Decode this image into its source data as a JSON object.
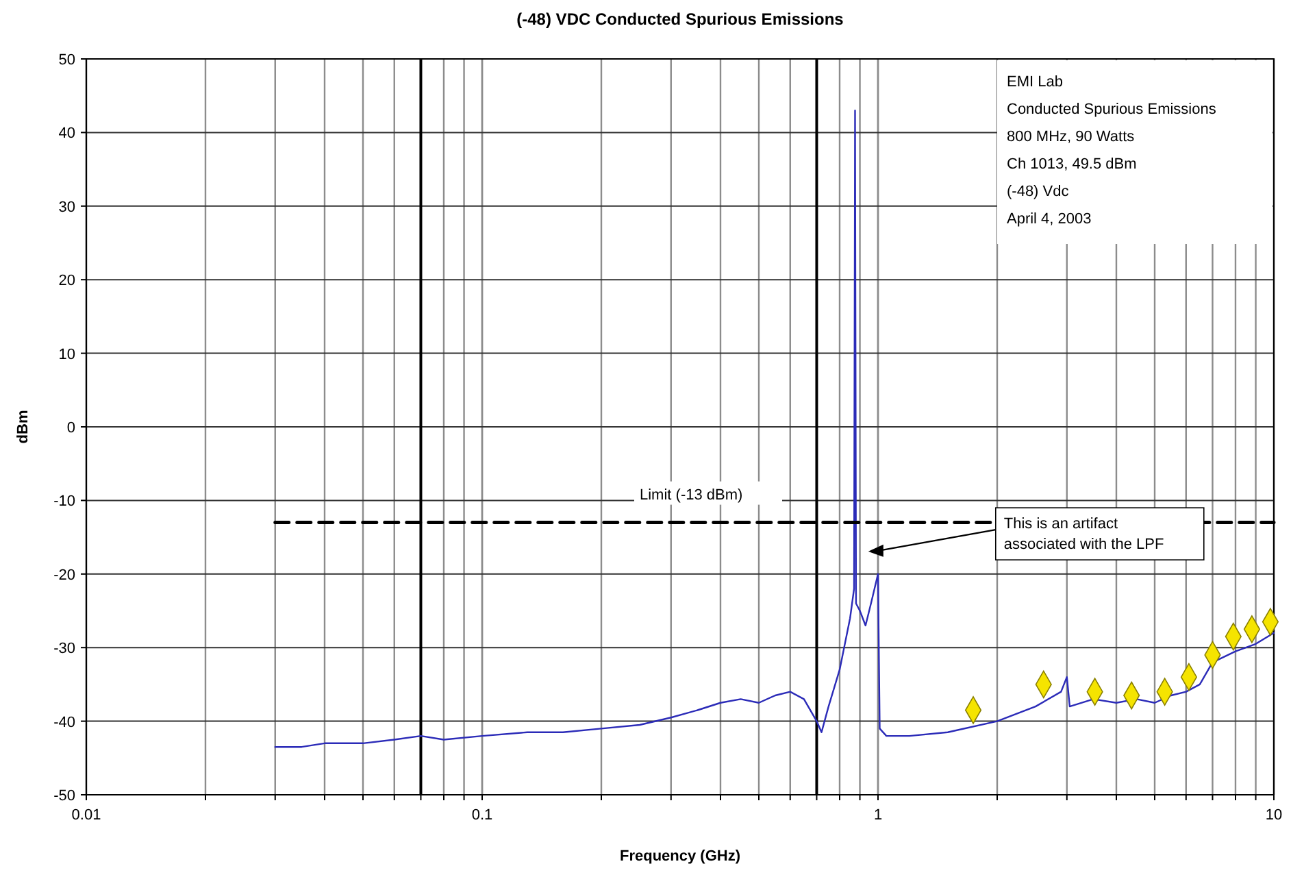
{
  "chart_data": {
    "type": "line",
    "title": "(-48) VDC Conducted Spurious Emissions",
    "xlabel": "Frequency (GHz)",
    "ylabel": "dBm",
    "log": "x",
    "grid": true,
    "xlim": [
      0.01,
      10
    ],
    "xticks": [
      0.01,
      {
        "value": 0.02,
        "label": null
      },
      {
        "value": 0.03,
        "label": null
      },
      {
        "value": 0.04,
        "label": null
      },
      {
        "value": 0.05,
        "label": null
      },
      {
        "value": 0.06,
        "label": null
      },
      {
        "value": 0.07,
        "label": null
      },
      {
        "value": 0.08,
        "label": null
      },
      {
        "value": 0.09,
        "label": null
      },
      0.1,
      {
        "value": 0.2,
        "label": null
      },
      {
        "value": 0.3,
        "label": null
      },
      {
        "value": 0.4,
        "label": null
      },
      {
        "value": 0.5,
        "label": null
      },
      {
        "value": 0.6,
        "label": null
      },
      {
        "value": 0.7,
        "label": null
      },
      {
        "value": 0.8,
        "label": null
      },
      {
        "value": 0.9,
        "label": null
      },
      1,
      {
        "value": 2,
        "label": null
      },
      {
        "value": 3,
        "label": null
      },
      {
        "value": 4,
        "label": null
      },
      {
        "value": 5,
        "label": null
      },
      {
        "value": 6,
        "label": null
      },
      {
        "value": 7,
        "label": null
      },
      {
        "value": 8,
        "label": null
      },
      {
        "value": 9,
        "label": null
      },
      10
    ],
    "ylim": [
      -50,
      50
    ],
    "yticks": [
      -50,
      -40,
      -30,
      -20,
      -10,
      0,
      10,
      20,
      30,
      40,
      50
    ],
    "series": [
      {
        "color": "#2b2bb8",
        "marker": "none",
        "line_style": "solid",
        "x": [
          0.03,
          0.035,
          0.04,
          0.05,
          0.06,
          0.07,
          0.08,
          0.1,
          0.13,
          0.16,
          0.2,
          0.25,
          0.3,
          0.35,
          0.4,
          0.45,
          0.5,
          0.55,
          0.6,
          0.65,
          0.7,
          0.72,
          0.75,
          0.8,
          0.85,
          0.87,
          0.875,
          0.88,
          0.9,
          0.93,
          0.96,
          1.0,
          1.01,
          1.05,
          1.2,
          1.5,
          2,
          2.5,
          2.9,
          3.0,
          3.05,
          3.5,
          4,
          4.5,
          5,
          5.5,
          6,
          6.5,
          7,
          8,
          9,
          10
        ],
        "values": [
          -43.5,
          -43.5,
          -43,
          -43,
          -42.5,
          -42,
          -42.5,
          -42,
          -41.5,
          -41.5,
          -41,
          -40.5,
          -39.5,
          -38.5,
          -37.5,
          -37,
          -37.5,
          -36.5,
          -36,
          -37,
          -40,
          -41.5,
          -38,
          -33,
          -26,
          -22,
          43,
          -24,
          -25,
          -27,
          -24,
          -20,
          -41,
          -42,
          -42,
          -41.5,
          -40,
          -38,
          -36,
          -34,
          -38,
          -37,
          -37.5,
          -37,
          -37.5,
          -36.5,
          -36,
          -35,
          -32,
          -30.5,
          -29.5,
          -28
        ]
      },
      {
        "type": "line",
        "color": "#000000",
        "marker": "none",
        "line_style": "dashed",
        "x": [
          0.03,
          10
        ],
        "values": [
          -13,
          -13
        ]
      },
      {
        "type": "scatter",
        "color": "#f5e400",
        "marker": "diamond",
        "x": [
          1.74,
          2.62,
          3.53,
          4.37,
          5.3,
          6.1,
          7.0,
          7.9,
          8.8,
          9.8
        ],
        "values": [
          -38.5,
          -35,
          -36,
          -36.5,
          -36,
          -34,
          -31,
          -28.5,
          -27.5,
          -26.5
        ]
      }
    ],
    "ref_lines": [
      {
        "axis": "x",
        "value": 0.07,
        "color": "#000000"
      },
      {
        "axis": "x",
        "value": 0.7,
        "color": "#000000"
      }
    ],
    "annotations": [
      "EMI Lab",
      "Conducted Spurious Emissions",
      "800 MHz, 90 Watts",
      "Ch 1013, 49.5 dBm",
      "(-48) Vdc",
      "April 4, 2003",
      {
        "text": "Limit (-13 dBm)",
        "x": 0.25,
        "y": -13
      },
      "This is an artifact associated with the LPF"
    ]
  }
}
